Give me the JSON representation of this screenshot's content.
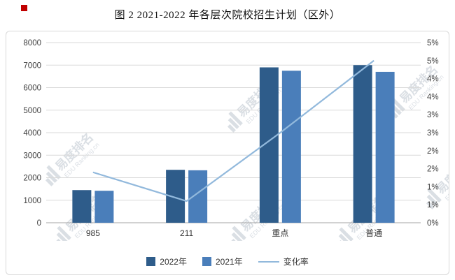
{
  "title": "图 2 2021-2022 年各层次院校招生计划（区外）",
  "watermark": {
    "icon": "bar-chart-logo",
    "text_cn": "易度排名",
    "text_en": "EDU Ranking.cn"
  },
  "colors": {
    "bar_2022": "#2E5C8A",
    "bar_2021": "#4A7EBA",
    "change_rate_line": "#92B9DC",
    "gridline": "#D9D9D9",
    "axis": "#A6A6A6",
    "corner_marker": "#C00000",
    "watermark": "#C3CAD3"
  },
  "chart_data": {
    "type": "bar",
    "title": "图 2 2021-2022 年各层次院校招生计划（区外）",
    "categories": [
      "985",
      "211",
      "重点",
      "普通"
    ],
    "series": [
      {
        "name": "2022年",
        "type": "bar",
        "color": "#2E5C8A",
        "values": [
          1450,
          2350,
          6900,
          7000
        ]
      },
      {
        "name": "2021年",
        "type": "bar",
        "color": "#4A7EBA",
        "values": [
          1420,
          2330,
          6750,
          6700
        ]
      },
      {
        "name": "变化率",
        "type": "line",
        "color": "#92B9DC",
        "values": [
          1.4,
          0.6,
          2.5,
          4.5
        ],
        "axis": "right",
        "unit": "%"
      }
    ],
    "left_axis": {
      "min": 0,
      "max": 8000,
      "step": 1000,
      "tick_labels": [
        "0",
        "1000",
        "2000",
        "3000",
        "4000",
        "5000",
        "6000",
        "7000",
        "8000"
      ]
    },
    "right_axis": {
      "min": 0,
      "max": 5,
      "step": 0.5,
      "tick_labels": [
        "0%",
        "1%",
        "1%",
        "2%",
        "2%",
        "3%",
        "3%",
        "4%",
        "4%",
        "5%",
        "5%"
      ]
    },
    "grid": true,
    "legend_position": "bottom",
    "legend": [
      "2022年",
      "2021年",
      "变化率"
    ]
  }
}
